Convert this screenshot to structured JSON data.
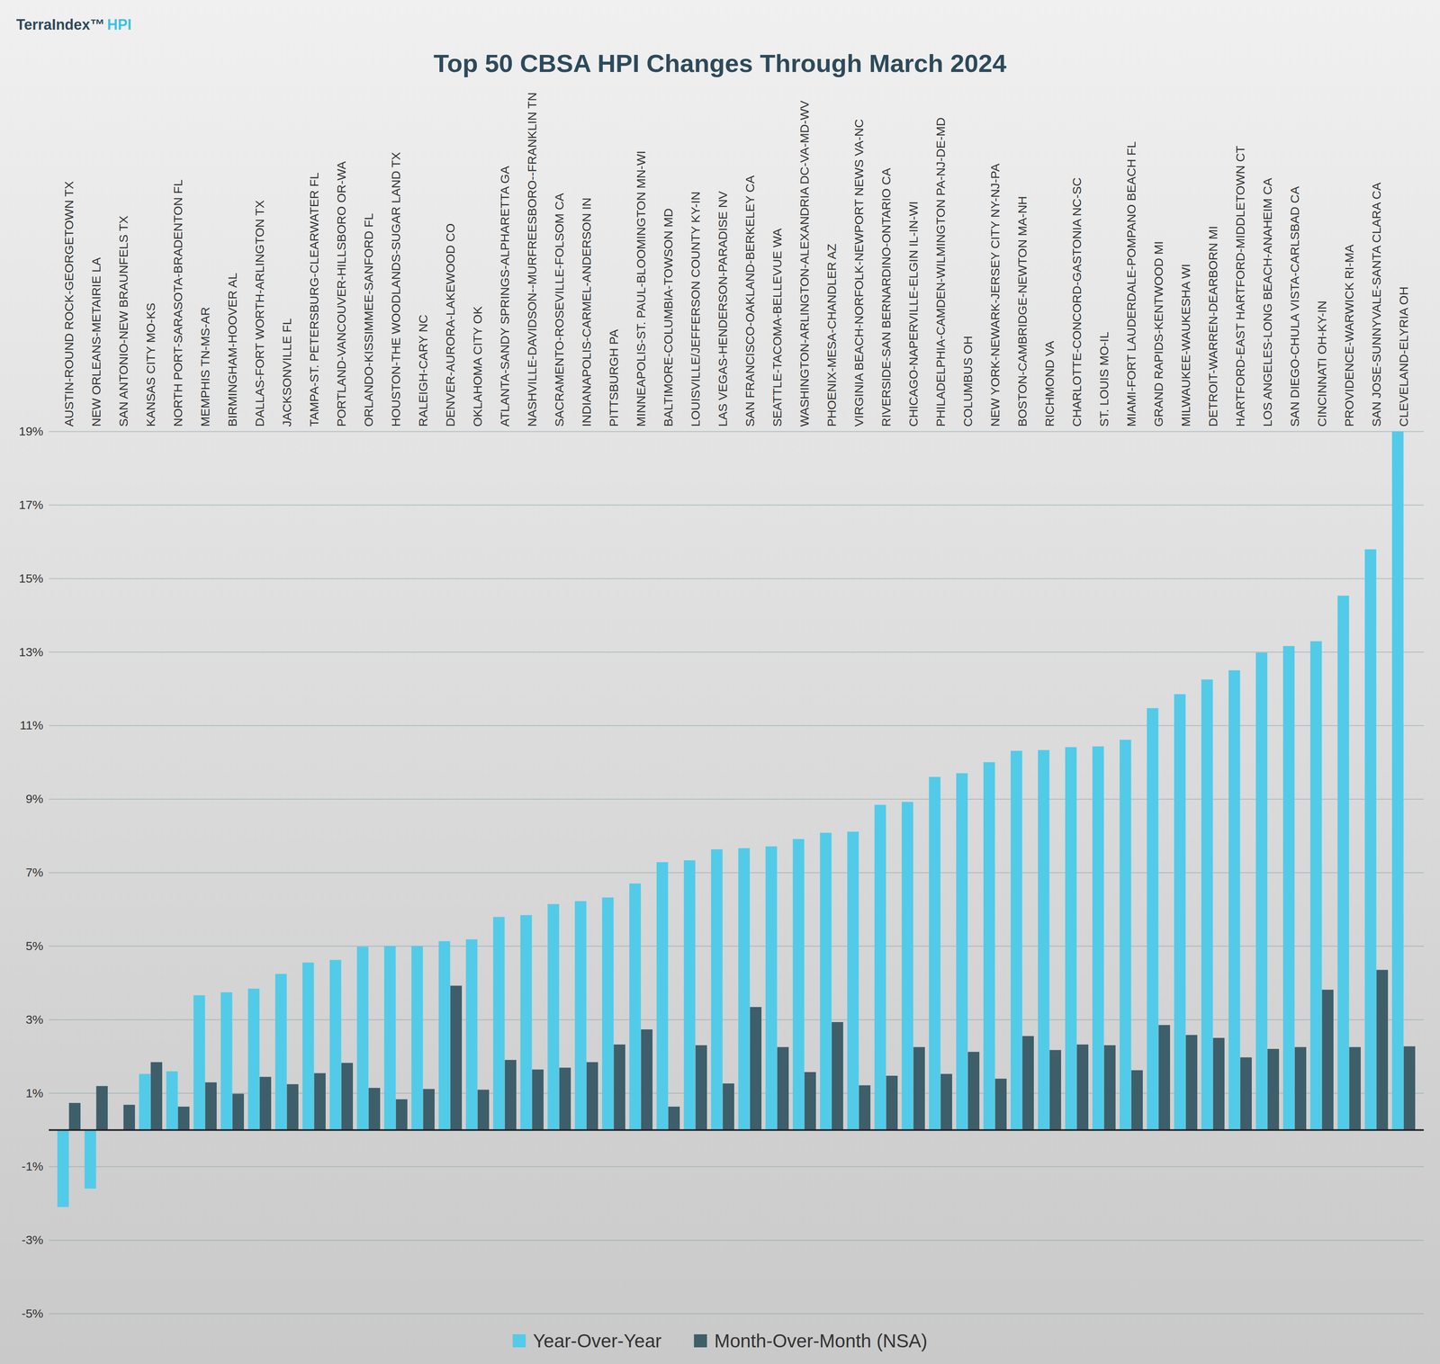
{
  "chart_data": {
    "type": "bar",
    "title": "Top 50 CBSA HPI Changes Through March 2024",
    "annotations": [
      "TerraIndex™",
      "HPI"
    ],
    "categories": [
      "AUSTIN-ROUND ROCK-GEORGETOWN TX",
      "NEW ORLEANS-METAIRIE LA",
      "SAN ANTONIO-NEW BRAUNFELS TX",
      "KANSAS CITY MO-KS",
      "NORTH PORT-SARASOTA-BRADENTON FL",
      "MEMPHIS TN-MS-AR",
      "BIRMINGHAM-HOOVER AL",
      "DALLAS-FORT WORTH-ARLINGTON TX",
      "JACKSONVILLE FL",
      "TAMPA-ST. PETERSBURG-CLEARWATER FL",
      "PORTLAND-VANCOUVER-HILLSBORO OR-WA",
      "ORLANDO-KISSIMMEE-SANFORD FL",
      "HOUSTON-THE WOODLANDS-SUGAR LAND TX",
      "RALEIGH-CARY NC",
      "DENVER-AURORA-LAKEWOOD CO",
      "OKLAHOMA CITY OK",
      "ATLANTA-SANDY SPRINGS-ALPHARETTA GA",
      "NASHVILLE-DAVIDSON--MURFREESBORO--FRANKLIN TN",
      "SACRAMENTO-ROSEVILLE-FOLSOM CA",
      "INDIANAPOLIS-CARMEL-ANDERSON IN",
      "PITTSBURGH PA",
      "MINNEAPOLIS-ST. PAUL-BLOOMINGTON MN-WI",
      "BALTIMORE-COLUMBIA-TOWSON MD",
      "LOUISVILLE/JEFFERSON COUNTY KY-IN",
      "LAS VEGAS-HENDERSON-PARADISE NV",
      "SAN FRANCISCO-OAKLAND-BERKELEY CA",
      "SEATTLE-TACOMA-BELLEVUE WA",
      "WASHINGTON-ARLINGTON-ALEXANDRIA DC-VA-MD-WV",
      "PHOENIX-MESA-CHANDLER AZ",
      "VIRGINIA BEACH-NORFOLK-NEWPORT NEWS VA-NC",
      "RIVERSIDE-SAN BERNARDINO-ONTARIO CA",
      "CHICAGO-NAPERVILLE-ELGIN IL-IN-WI",
      "PHILADELPHIA-CAMDEN-WILMINGTON PA-NJ-DE-MD",
      "COLUMBUS OH",
      "NEW YORK-NEWARK-JERSEY CITY NY-NJ-PA",
      "BOSTON-CAMBRIDGE-NEWTON MA-NH",
      "RICHMOND VA",
      "CHARLOTTE-CONCORD-GASTONIA NC-SC",
      "ST. LOUIS MO-IL",
      "MIAMI-FORT LAUDERDALE-POMPANO BEACH FL",
      "GRAND RAPIDS-KENTWOOD MI",
      "MILWAUKEE-WAUKESHA WI",
      "DETROIT-WARREN-DEARBORN MI",
      "HARTFORD-EAST HARTFORD-MIDDLETOWN CT",
      "LOS ANGELES-LONG BEACH-ANAHEIM CA",
      "SAN DIEGO-CHULA VISTA-CARLSBAD CA",
      "CINCINNATI OH-KY-IN",
      "PROVIDENCE-WARWICK RI-MA",
      "SAN JOSE-SUNNYVALE-SANTA CLARA CA",
      "CLEVELAND-ELYRIA OH"
    ],
    "series": [
      {
        "name": "Year-Over-Year",
        "color": "#52cbe8",
        "values": [
          -2.1,
          -1.6,
          0.0,
          1.52,
          1.59,
          3.66,
          3.74,
          3.84,
          4.24,
          4.55,
          4.62,
          4.98,
          5.0,
          5.0,
          5.13,
          5.18,
          5.79,
          5.84,
          6.14,
          6.22,
          6.32,
          6.7,
          7.28,
          7.33,
          7.63,
          7.66,
          7.71,
          7.91,
          8.08,
          8.11,
          8.84,
          8.92,
          9.6,
          9.7,
          10.0,
          10.31,
          10.33,
          10.41,
          10.43,
          10.61,
          11.47,
          11.85,
          12.25,
          12.5,
          12.98,
          13.16,
          13.29,
          14.53,
          15.79,
          19.0
        ]
      },
      {
        "name": "Month-Over-Month (NSA)",
        "color": "#3e5e6a",
        "values": [
          0.73,
          1.19,
          0.68,
          1.84,
          0.63,
          1.29,
          0.98,
          1.44,
          1.24,
          1.54,
          1.82,
          1.14,
          0.83,
          1.11,
          3.92,
          1.09,
          1.9,
          1.64,
          1.69,
          1.84,
          2.32,
          2.73,
          0.63,
          2.3,
          1.26,
          3.34,
          2.25,
          1.57,
          2.93,
          1.21,
          1.47,
          2.25,
          1.52,
          2.12,
          1.39,
          2.55,
          2.17,
          2.32,
          2.3,
          1.62,
          2.85,
          2.58,
          2.5,
          1.97,
          2.2,
          2.25,
          3.81,
          2.25,
          4.35,
          2.27
        ]
      }
    ],
    "ylim": [
      -5,
      19
    ],
    "yticks": [
      {
        "value": -5,
        "label": "-5%"
      },
      {
        "value": -3,
        "label": "-3%"
      },
      {
        "value": -1,
        "label": "-1%"
      },
      {
        "value": 1,
        "label": "1%"
      },
      {
        "value": 3,
        "label": "3%"
      },
      {
        "value": 5,
        "label": "5%"
      },
      {
        "value": 7,
        "label": "7%"
      },
      {
        "value": 9,
        "label": "9%"
      },
      {
        "value": 11,
        "label": "11%"
      },
      {
        "value": 13,
        "label": "13%"
      },
      {
        "value": 15,
        "label": "15%"
      },
      {
        "value": 17,
        "label": "17%"
      },
      {
        "value": 19,
        "label": "19%"
      }
    ],
    "grid": true,
    "legend": "bottom"
  }
}
